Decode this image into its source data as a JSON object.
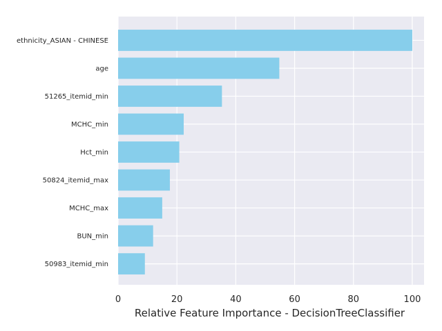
{
  "chart_data": {
    "type": "bar",
    "orientation": "horizontal",
    "categories": [
      "ethnicity_ASIAN - CHINESE",
      "age",
      "51265_itemid_min",
      "MCHC_min",
      "Hct_min",
      "50824_itemid_max",
      "MCHC_max",
      "BUN_min",
      "50983_itemid_min"
    ],
    "values": [
      100,
      54.8,
      35.3,
      22.3,
      20.8,
      17.6,
      15.0,
      11.9,
      9.1
    ],
    "xlabel": "Relative Feature Importance - DecisionTreeClassifier",
    "ylabel": "",
    "xlim": [
      0,
      104
    ],
    "xticks": [
      0,
      20,
      40,
      60,
      80,
      100
    ],
    "grid": true,
    "bar_color": "#87ceeb",
    "background_color": "#eaeaf2",
    "grid_color": "#ffffff"
  }
}
